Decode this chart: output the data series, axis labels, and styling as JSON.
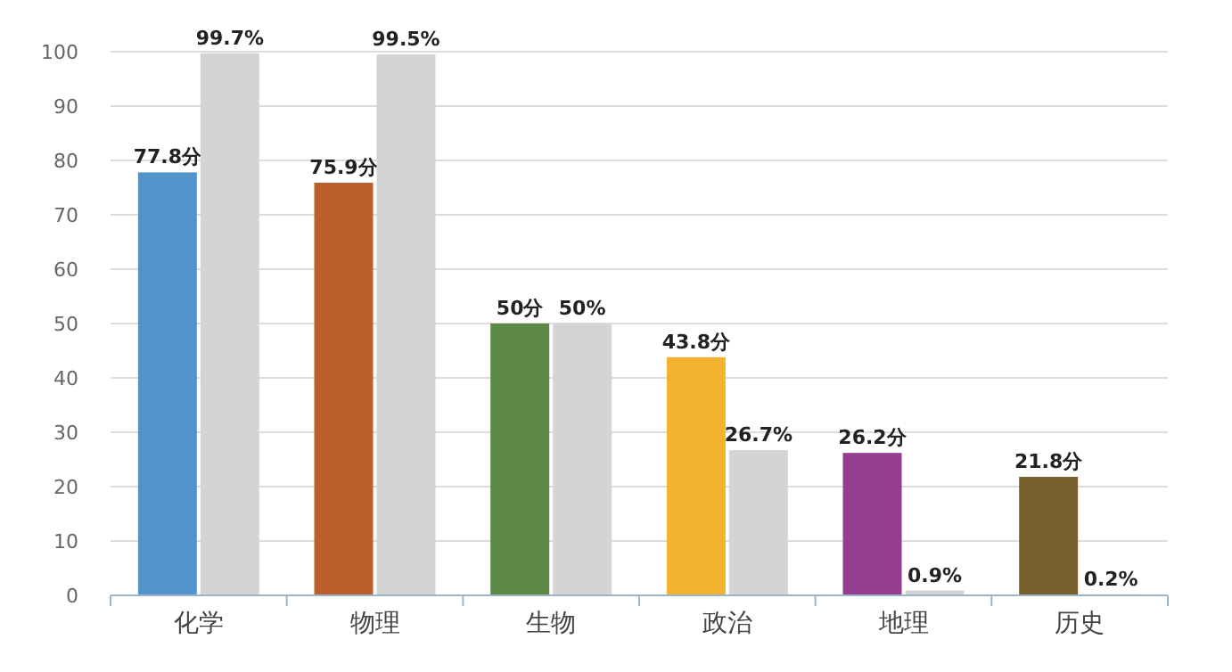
{
  "chart_data": {
    "type": "bar",
    "categories": [
      "化学",
      "物理",
      "生物",
      "政治",
      "地理",
      "历史"
    ],
    "series": [
      {
        "colors": [
          "#5393cc",
          "#bd5f2c",
          "#5d8a45",
          "#f4b32e",
          "#943d91",
          "#77602e"
        ],
        "values": [
          77.8,
          75.9,
          50,
          43.8,
          26.2,
          21.8
        ],
        "value_labels": [
          "77.8分",
          "75.9分",
          "50分",
          "43.8分",
          "26.2分",
          "21.8分"
        ]
      },
      {
        "color": "#d4d4d6",
        "values": [
          99.7,
          99.5,
          50,
          26.7,
          0.9,
          0.2
        ],
        "value_labels": [
          "99.7%",
          "99.5%",
          "50%",
          "26.7%",
          "0.9%",
          "0.2%"
        ]
      }
    ],
    "ylim": [
      0,
      100
    ],
    "yticks": [
      0,
      10,
      20,
      30,
      40,
      50,
      60,
      70,
      80,
      90,
      100
    ],
    "grid": "y"
  }
}
